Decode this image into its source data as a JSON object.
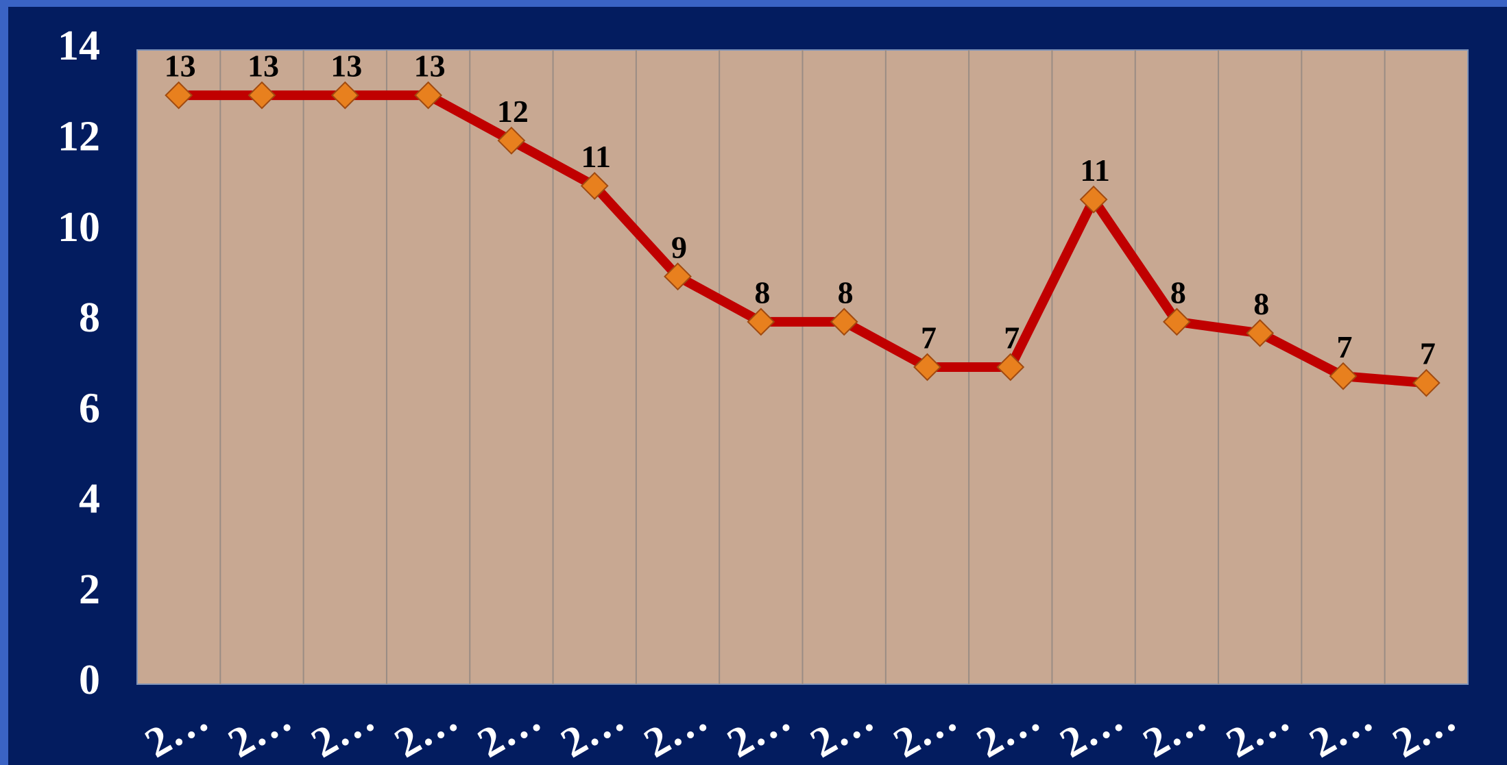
{
  "chart_data": {
    "type": "line",
    "categories": [
      "2…",
      "2…",
      "2…",
      "2…",
      "2…",
      "2…",
      "2…",
      "2…",
      "2…",
      "2…",
      "2…",
      "2…",
      "2…",
      "2…",
      "2…",
      "2…"
    ],
    "series": [
      {
        "color": "#c00000",
        "marker_color": "#e8801e",
        "values": [
          13,
          13,
          13,
          13,
          12,
          11,
          9,
          8,
          8,
          7,
          7,
          10.7,
          8,
          7.75,
          6.8,
          6.65
        ],
        "value_labels": [
          "13",
          "13",
          "13",
          "13",
          "12",
          "11",
          "9",
          "8",
          "8",
          "7",
          "7",
          "11",
          "8",
          "8",
          "7",
          "7"
        ]
      }
    ],
    "ylim": [
      0,
      14
    ],
    "yticks": [
      0,
      2,
      4,
      6,
      8,
      10,
      12,
      14
    ]
  }
}
